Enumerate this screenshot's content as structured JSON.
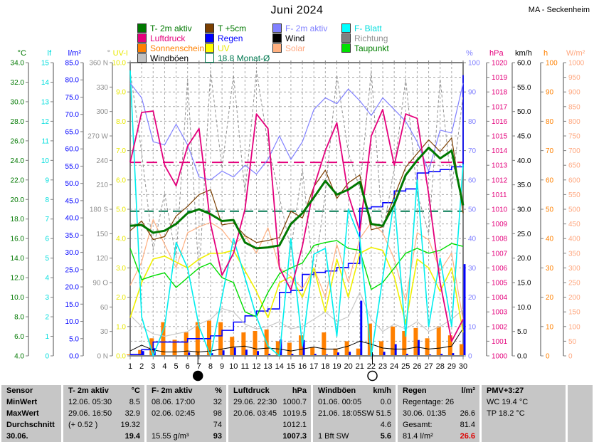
{
  "header": {
    "title": "Juni 2024",
    "station": "MA - Seckenheim"
  },
  "legend": {
    "items": [
      {
        "name": "t2m",
        "label": "T- 2m aktiv",
        "swatch": "#007800",
        "text": "#007800"
      },
      {
        "name": "t5cm",
        "label": "T +5cm",
        "swatch": "#7B3F00",
        "text": "#007800"
      },
      {
        "name": "f2m",
        "label": "F- 2m aktiv",
        "swatch": "#8080FF",
        "text": "#8080FF"
      },
      {
        "name": "fblatt",
        "label": "F- Blatt",
        "swatch": "#00FFFF",
        "text": "#00DDDD"
      },
      {
        "name": "luftdruck",
        "label": "Luftdruck",
        "swatch": "#E4007C",
        "text": "#E4007C"
      },
      {
        "name": "regen",
        "label": "Regen",
        "swatch": "#0000FF",
        "text": "#0000FF"
      },
      {
        "name": "wind",
        "label": "Wind",
        "swatch": "#000000",
        "text": "#000000"
      },
      {
        "name": "richtung",
        "label": "Richtung",
        "swatch": "#808080",
        "text": "#909090"
      },
      {
        "name": "sonnenschein",
        "label": "Sonnenschein",
        "swatch": "#FF8000",
        "text": "#FF8000"
      },
      {
        "name": "uv",
        "label": "UV",
        "swatch": "#FFFF00",
        "text": "#E8E800"
      },
      {
        "name": "solar",
        "label": "Solar",
        "swatch": "#FFB080",
        "text": "#FFA880"
      },
      {
        "name": "taupunkt",
        "label": "Taupunkt",
        "swatch": "#00E000",
        "text": "#008000"
      },
      {
        "name": "windboeen",
        "label": "Windböen",
        "swatch": "#C0C0C0",
        "text": "#000000"
      },
      {
        "name": "monatsavg",
        "label": "18.8 Monat-Ø",
        "swatch": "none",
        "outline": "#007850",
        "text": "#007850"
      }
    ]
  },
  "chart_data": {
    "type": "line",
    "days": 30,
    "axes": [
      {
        "id": "degC",
        "title": "°C",
        "color": "#007800",
        "side": "left",
        "min": 4,
        "max": 34,
        "step": 2,
        "decimals": 1
      },
      {
        "id": "lf",
        "title": "lf",
        "color": "#00DDDD",
        "side": "left",
        "min": 0,
        "max": 15,
        "step": 1,
        "decimals": 0
      },
      {
        "id": "lm2",
        "title": "l/m²",
        "color": "#0000FF",
        "side": "left",
        "min": 0,
        "max": 85,
        "step": 5,
        "decimals": 1
      },
      {
        "id": "dir",
        "title": "°",
        "color": "#909090",
        "side": "left",
        "min": 0,
        "max": 360,
        "step": 30,
        "decimals": 0,
        "labels": [
          "360 N",
          "330",
          "300",
          "270 W",
          "240",
          "210",
          "180 S",
          "150",
          "120",
          "90 O",
          "60",
          "30",
          "0 N"
        ]
      },
      {
        "id": "uvi",
        "title": "UV-I",
        "color": "#E8E800",
        "side": "left",
        "min": 0,
        "max": 10,
        "step": 1,
        "decimals": 1
      },
      {
        "id": "pct",
        "title": "%",
        "color": "#8080FF",
        "side": "right",
        "min": 0,
        "max": 100,
        "step": 10,
        "decimals": 0
      },
      {
        "id": "hPa",
        "title": "hPa",
        "color": "#E4007C",
        "side": "right",
        "min": 1000,
        "max": 1020,
        "step": 1,
        "decimals": 0
      },
      {
        "id": "kmh",
        "title": "km/h",
        "color": "#000000",
        "side": "right",
        "min": 0,
        "max": 60,
        "step": 5,
        "decimals": 1
      },
      {
        "id": "h",
        "title": "h",
        "color": "#FF8000",
        "side": "right",
        "min": 0,
        "max": 100,
        "step": 10,
        "decimals": 0
      },
      {
        "id": "wm2",
        "title": "W/m²",
        "color": "#FFA880",
        "side": "right",
        "min": 0,
        "max": 1000,
        "step": 50,
        "decimals": 0
      }
    ],
    "series": [
      {
        "id": "sonnenschein",
        "label": "Sonnenschein",
        "axis": "h",
        "type": "bar",
        "color": "#FF8000",
        "width": 6,
        "offset": -2,
        "values": [
          0.5,
          2,
          6,
          11.5,
          5.5,
          8,
          11.5,
          12,
          11.5,
          6.5,
          8,
          8.5,
          9,
          5,
          4.5,
          7,
          3,
          8,
          2.5,
          5,
          2.5,
          11,
          5,
          10,
          8.5,
          9.5,
          6,
          10,
          7,
          4
        ]
      },
      {
        "id": "regen",
        "label": "Regen",
        "axis": "lm2",
        "type": "bar",
        "color": "#0000FF",
        "width": 3,
        "offset": 2,
        "values": [
          0.4,
          1.4,
          2.2,
          0,
          0,
          1.0,
          0,
          0.8,
          1.6,
          2.4,
          1.8,
          1.4,
          0.6,
          4.8,
          0.6,
          4.6,
          0.6,
          0.4,
          1.0,
          1.2,
          16.0,
          0.4,
          1.2,
          3.4,
          0.6,
          4.6,
          0.4,
          0.6,
          0.8,
          26.6
        ]
      },
      {
        "id": "regen_summe",
        "label": "Regen Summe",
        "axis": "lm2",
        "type": "cumstep",
        "color": "#0000FF",
        "width": 1.6,
        "source": "regen"
      },
      {
        "id": "solar",
        "label": "Solar",
        "axis": "wm2",
        "type": "line",
        "color": "#FFB080",
        "width": 1.2,
        "values": [
          240,
          320,
          465,
          380,
          300,
          420,
          440,
          455,
          430,
          380,
          410,
          350,
          437,
          300,
          270,
          230,
          300,
          200,
          380,
          250,
          400,
          455,
          420,
          330,
          187,
          420,
          396,
          290,
          350,
          121
        ]
      },
      {
        "id": "windboeen",
        "label": "Windböen",
        "axis": "kmh",
        "type": "line",
        "color": "#C8C8C8",
        "width": 1.2,
        "values": [
          8.3,
          6,
          4.5,
          4,
          4.5,
          5,
          6.5,
          7.5,
          9.7,
          9,
          6.5,
          5.5,
          6,
          7,
          5.5,
          6,
          7.5,
          9,
          7,
          8,
          13,
          7.5,
          5,
          6.5,
          5.5,
          7,
          5,
          6,
          7.5,
          9.5
        ]
      },
      {
        "id": "richtung",
        "label": "Richtung",
        "axis": "dir",
        "type": "line",
        "color": "#909090",
        "width": 1,
        "dash": "4 3",
        "values": [
          350,
          250,
          130,
          200,
          120,
          340,
          95,
          350,
          230,
          345,
          200,
          350,
          260,
          195,
          130,
          230,
          95,
          200,
          345,
          250,
          205,
          350,
          150,
          230,
          340,
          200,
          150,
          340,
          205,
          320
        ]
      },
      {
        "id": "wind",
        "label": "Wind",
        "axis": "kmh",
        "type": "line",
        "color": "#000000",
        "width": 1,
        "values": [
          1.0,
          2.2,
          1.2,
          0.8,
          0.8,
          1.0,
          0.8,
          1.0,
          1.4,
          1.8,
          2.0,
          1.4,
          1.6,
          1.4,
          1.0,
          1.4,
          1.8,
          1.4,
          1.4,
          2.0,
          3.0,
          2.4,
          1.6,
          1.4,
          1.4,
          1.8,
          1.4,
          1.6,
          2.0,
          5.6
        ]
      },
      {
        "id": "uv",
        "label": "UV",
        "axis": "uvi",
        "type": "line",
        "color": "#F0F000",
        "width": 1.6,
        "values": [
          1.3,
          2.5,
          3.3,
          3.4,
          3.2,
          3.0,
          3.3,
          3.5,
          3.5,
          3.6,
          2.9,
          2.2,
          1.3,
          2.5,
          2.7,
          2.0,
          3.0,
          1.5,
          3.3,
          2.0,
          3.5,
          3.7,
          3.6,
          2.7,
          1.1,
          3.3,
          3.0,
          2.2,
          3.0,
          0.8
        ]
      },
      {
        "id": "taupunkt",
        "label": "Taupunkt",
        "axis": "degC",
        "type": "line",
        "color": "#00DD00",
        "width": 1.4,
        "values": [
          15.0,
          11.8,
          12.2,
          12.5,
          11.0,
          12.0,
          13.0,
          13.5,
          12.0,
          11.5,
          8.5,
          8.0,
          10.5,
          12.4,
          13.0,
          13.5,
          15.3,
          15.6,
          15.8,
          15.0,
          14.8,
          10.8,
          11.5,
          13.0,
          14.5,
          15.0,
          14.5,
          14.8,
          15.5,
          15.2
        ]
      },
      {
        "id": "fblatt",
        "label": "F- Blatt",
        "axis": "lf",
        "type": "line",
        "color": "#00EEEE",
        "width": 1.6,
        "values": [
          14.6,
          2,
          0,
          1.5,
          5.8,
          4.5,
          1.5,
          0,
          3,
          6,
          4,
          2,
          0.5,
          0,
          6,
          0.5,
          5.2,
          5.5,
          1,
          7.5,
          6,
          0,
          4,
          8,
          1,
          9,
          1.5,
          5,
          1.5,
          9.8
        ]
      },
      {
        "id": "f2m",
        "label": "F- 2m aktiv",
        "axis": "pct",
        "type": "line",
        "color": "#8080FF",
        "width": 1.2,
        "values": [
          93,
          88,
          73,
          72,
          79,
          72,
          61,
          60,
          63,
          61,
          65,
          62,
          67,
          75,
          67,
          73,
          84,
          88,
          86,
          91,
          87,
          82,
          88,
          84,
          80,
          73,
          63,
          77,
          76,
          93
        ]
      },
      {
        "id": "t5cm",
        "label": "T +5cm",
        "axis": "degC",
        "type": "line",
        "color": "#7B3F00",
        "width": 1.2,
        "values": [
          16.8,
          17.8,
          15.9,
          16.2,
          18.3,
          19.3,
          20.5,
          21.0,
          17.4,
          17.6,
          16.3,
          15.6,
          15.8,
          16.1,
          18.8,
          18.1,
          21.3,
          23.0,
          20.1,
          21.7,
          22.5,
          16.9,
          17.2,
          20.3,
          23.3,
          24.7,
          26.1,
          24.9,
          26.3,
          18.6
        ]
      },
      {
        "id": "luftdruck",
        "label": "Luftdruck",
        "axis": "hPa",
        "type": "line",
        "color": "#E4007C",
        "width": 1.8,
        "values": [
          1013.2,
          1016.6,
          1016.7,
          1013.0,
          1011.6,
          1014.3,
          1015.5,
          1009.0,
          1005.5,
          1007.0,
          1010.0,
          1016.5,
          1015.5,
          1006.0,
          1004.5,
          1007.5,
          1011.5,
          1014.0,
          1015.9,
          1011.0,
          1008.5,
          1015.0,
          1016.8,
          1013.0,
          1016.5,
          1016.2,
          1011.0,
          1005.0,
          1001.0,
          1002.5
        ]
      },
      {
        "id": "t2m",
        "label": "T- 2m aktiv",
        "axis": "degC",
        "type": "line",
        "color": "#007800",
        "width": 3,
        "values": [
          17.3,
          17.4,
          16.6,
          16.8,
          17.5,
          18.6,
          19.0,
          18.5,
          17.8,
          17.9,
          15.6,
          15.0,
          15.1,
          15.3,
          17.5,
          18.6,
          20.2,
          21.9,
          20.5,
          21.0,
          21.8,
          17.5,
          17.3,
          19.5,
          22.5,
          24.0,
          25.3,
          24.2,
          25.0,
          19.4
        ]
      }
    ],
    "reference_lines": [
      {
        "id": "monatsavg",
        "label": "18.8 Monat-Ø",
        "axis": "degC",
        "value": 18.8,
        "color": "#007850",
        "dash": "13 7",
        "width": 2
      },
      {
        "id": "luftdruck-mittel",
        "label": "",
        "axis": "hPa",
        "value": 1013.2,
        "color": "#E4007C",
        "dash": "15 8",
        "width": 2
      }
    ],
    "moon_markers": [
      {
        "day": 6.9,
        "phase": "new-moon",
        "glyph": "●"
      },
      {
        "day": 22.1,
        "phase": "full-moon",
        "glyph": "○"
      }
    ]
  },
  "table": {
    "row_labels": [
      "Sensor",
      "MinWert",
      "MaxWert",
      "Durchschnitt",
      "30.06."
    ],
    "columns": [
      {
        "id": "t2m",
        "title": "T- 2m aktiv",
        "unit": "°C",
        "rows": [
          {
            "left": "12.06.  05:30",
            "right": "8.5"
          },
          {
            "left": "29.06.  16:50",
            "right": "32.9"
          },
          {
            "left": "(+ 0.52 )",
            "right": "19.32"
          },
          {
            "left": "",
            "right": "19.4",
            "bold": true
          }
        ]
      },
      {
        "id": "f2m",
        "title": "F- 2m aktiv",
        "unit": "%",
        "rows": [
          {
            "left": "08.06.  17:00",
            "right": "32"
          },
          {
            "left": "02.06.  02:45",
            "right": "98"
          },
          {
            "left": "",
            "right": "74"
          },
          {
            "left": "15.55 g/m³",
            "right": "93",
            "bold": true
          }
        ]
      },
      {
        "id": "luftdruck",
        "title": "Luftdruck",
        "unit": "hPa",
        "rows": [
          {
            "left": "29.06.  22:30",
            "right": "1000.7"
          },
          {
            "left": "20.06.  03:45",
            "right": "1019.5"
          },
          {
            "left": "",
            "right": "1012.1"
          },
          {
            "left": "",
            "right": "1007.3",
            "bold": true
          }
        ]
      },
      {
        "id": "windboeen",
        "title": "Windböen",
        "unit": "km/h",
        "rows": [
          {
            "left": "01.06.  00:05",
            "right": "0.0"
          },
          {
            "left": "21.06.  18:05SW",
            "right": "51.5"
          },
          {
            "left": "",
            "right": "4.6"
          },
          {
            "left": "1 Bft SW",
            "right": "5.6",
            "bold": true
          }
        ]
      },
      {
        "id": "regen",
        "title": "Regen",
        "unit": "l/m²",
        "rows": [
          {
            "left": "Regentage: 26",
            "right": ""
          },
          {
            "left": "30.06.  01:35",
            "right": "26.6"
          },
          {
            "left": "Gesamt:",
            "right": "81.4"
          },
          {
            "left": "81.4 l/m²",
            "right": "26.6",
            "bold": true,
            "color": "#DD0000"
          }
        ]
      },
      {
        "id": "pmv",
        "title": "PMV+3:27",
        "unit": "",
        "rows": [
          {
            "left": "WC 19.4 °C",
            "right": ""
          },
          {
            "left": "TP 18.2 °C",
            "right": ""
          },
          {
            "left": "",
            "right": ""
          },
          {
            "left": "",
            "right": ""
          }
        ]
      }
    ]
  }
}
